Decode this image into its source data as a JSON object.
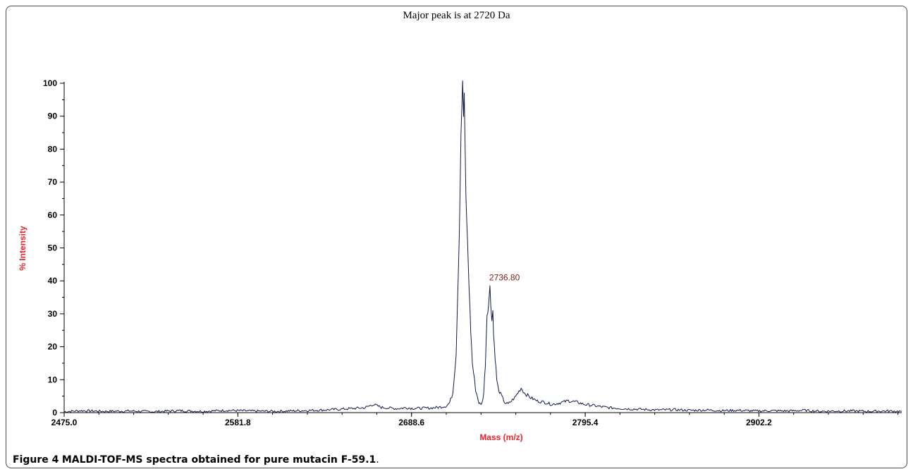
{
  "caption": {
    "label": "Figure 4",
    "text": "MALDI-TOF-MS spectra obtained for pure mutacin F-59.1",
    "end": "."
  },
  "colors": {
    "trace": "#0f1a4d",
    "axis_title": "#e8262c",
    "annotation": "#7a1a14",
    "frame": "#4a4a4a"
  },
  "chart_data": {
    "type": "line",
    "title": "Major peak is at 2720 Da",
    "xlabel": "Mass (m/z)",
    "ylabel": "% Intensity",
    "xlim": [
      2475.0,
      2990.0
    ],
    "ylim": [
      0,
      100
    ],
    "x_ticks": [
      2475.0,
      2581.8,
      2688.6,
      2795.4,
      2902.2
    ],
    "x_tick_labels": [
      "2475.0",
      "2581.8",
      "2688.6",
      "2795.4",
      "2902.2"
    ],
    "y_ticks": [
      0,
      10,
      20,
      30,
      40,
      50,
      60,
      70,
      80,
      90,
      100
    ],
    "y_tick_labels": [
      "0",
      "10",
      "20",
      "30",
      "40",
      "50",
      "60",
      "70",
      "80",
      "90",
      "100"
    ],
    "grid": false,
    "annotations": [
      {
        "text": "2736.80",
        "x": 2736.8,
        "y": 38
      }
    ],
    "series": [
      {
        "x": [
          2475,
          2485,
          2500,
          2515,
          2530,
          2545,
          2560,
          2575,
          2590,
          2605,
          2620,
          2635,
          2650,
          2660,
          2665,
          2670,
          2680,
          2685,
          2690,
          2700,
          2705,
          2710,
          2712,
          2714,
          2716,
          2718,
          2719,
          2720,
          2720.6,
          2721,
          2721.6,
          2722,
          2723,
          2724,
          2725,
          2726,
          2728,
          2730,
          2731,
          2732,
          2733,
          2734,
          2735,
          2736,
          2736.8,
          2737.3,
          2738,
          2738.6,
          2739,
          2740,
          2741,
          2742,
          2744,
          2746,
          2748,
          2752,
          2756,
          2758,
          2762,
          2766,
          2770,
          2775,
          2780,
          2785,
          2790,
          2795,
          2800,
          2805,
          2810,
          2820,
          2830,
          2840,
          2850,
          2860,
          2870,
          2880,
          2890,
          2900,
          2910,
          2920,
          2930,
          2940,
          2950,
          2960,
          2970,
          2980,
          2990
        ],
        "y": [
          0.3,
          0.6,
          0.4,
          0.5,
          0.3,
          0.6,
          0.4,
          0.7,
          0.5,
          0.4,
          0.6,
          0.8,
          1.2,
          1.5,
          2.5,
          1.6,
          1.2,
          1.5,
          1.3,
          1.4,
          1.6,
          2.0,
          3.0,
          6.0,
          18.0,
          55.0,
          85.0,
          100.0,
          90.0,
          97.0,
          78.0,
          66.0,
          52.0,
          38.0,
          25.0,
          15.0,
          7.0,
          3.0,
          2.5,
          3.0,
          6.0,
          15.0,
          30.0,
          33.0,
          38.0,
          33.0,
          29.0,
          31.0,
          24.0,
          17.0,
          10.0,
          7.0,
          5.0,
          3.0,
          2.6,
          4.5,
          7.5,
          6.0,
          4.5,
          3.5,
          3.2,
          2.5,
          3.0,
          3.6,
          3.2,
          2.5,
          2.2,
          1.8,
          1.5,
          1.2,
          1.0,
          0.8,
          0.9,
          0.7,
          0.8,
          0.6,
          0.7,
          0.5,
          0.6,
          0.5,
          0.7,
          0.4,
          0.5,
          0.5,
          0.4,
          0.5,
          0.4
        ]
      }
    ]
  }
}
